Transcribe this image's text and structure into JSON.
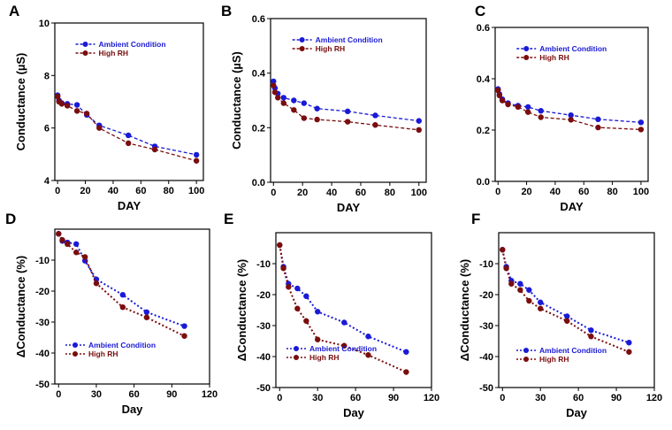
{
  "figure": {
    "domain": "multi-panel conductance figure"
  },
  "colors": {
    "ambient": "#1a1ad6",
    "high_rh": "#7a0d0d",
    "axis": "#000000"
  },
  "chart_data": [
    {
      "id": "A",
      "label": "A",
      "type": "line",
      "xlabel": "DAY",
      "ylabel": "Conductance (µS)",
      "xlim": [
        -2,
        105
      ],
      "ylim": [
        4,
        10
      ],
      "xticks": [
        0,
        20,
        40,
        60,
        80,
        100
      ],
      "yticks": [
        4,
        6,
        8,
        10
      ],
      "ytick_labels": [
        "4",
        "6",
        "8",
        "10"
      ],
      "legend": "top-right",
      "series": [
        {
          "name": "Ambient Condition",
          "style": "dashed",
          "x": [
            0,
            1,
            3,
            7,
            14,
            21,
            30,
            51,
            70,
            100
          ],
          "y": [
            7.25,
            7.05,
            6.95,
            6.92,
            6.88,
            6.5,
            6.1,
            5.72,
            5.3,
            4.98
          ]
        },
        {
          "name": "High RH",
          "style": "dashed",
          "x": [
            0,
            1,
            3,
            7,
            14,
            21,
            30,
            51,
            70,
            100
          ],
          "y": [
            7.2,
            7.0,
            6.92,
            6.85,
            6.65,
            6.55,
            6.0,
            5.42,
            5.18,
            4.75
          ]
        }
      ]
    },
    {
      "id": "B",
      "label": "B",
      "type": "line",
      "xlabel": "DAY",
      "ylabel": "Conductance (µS)",
      "xlim": [
        -2,
        105
      ],
      "ylim": [
        0,
        0.6
      ],
      "xticks": [
        0,
        20,
        40,
        60,
        80,
        100
      ],
      "yticks": [
        0,
        0.2,
        0.4,
        0.6
      ],
      "ytick_labels": [
        "0.0",
        "0.2",
        "0.4",
        "0.6"
      ],
      "legend": "top-right",
      "series": [
        {
          "name": "Ambient Condition",
          "style": "dashed",
          "x": [
            0,
            1,
            3,
            7,
            14,
            21,
            30,
            51,
            70,
            100
          ],
          "y": [
            0.37,
            0.345,
            0.325,
            0.31,
            0.3,
            0.29,
            0.27,
            0.26,
            0.245,
            0.225
          ]
        },
        {
          "name": "High RH",
          "style": "dashed",
          "x": [
            0,
            1,
            3,
            7,
            14,
            21,
            30,
            51,
            70,
            100
          ],
          "y": [
            0.355,
            0.33,
            0.31,
            0.29,
            0.265,
            0.235,
            0.23,
            0.222,
            0.21,
            0.192
          ]
        }
      ]
    },
    {
      "id": "C",
      "label": "C",
      "type": "line",
      "xlabel": "DAY",
      "ylabel": "",
      "xlim": [
        -2,
        105
      ],
      "ylim": [
        0,
        0.6
      ],
      "xticks": [
        0,
        20,
        40,
        60,
        80,
        100
      ],
      "yticks": [
        0,
        0.2,
        0.4,
        0.6
      ],
      "ytick_labels": [
        "0.0",
        "0.2",
        "0.4",
        "0.6"
      ],
      "legend": "top-right",
      "series": [
        {
          "name": "Ambient Condition",
          "style": "dashed",
          "x": [
            0,
            1,
            3,
            7,
            14,
            21,
            30,
            51,
            70,
            100
          ],
          "y": [
            0.36,
            0.34,
            0.32,
            0.305,
            0.295,
            0.29,
            0.275,
            0.258,
            0.242,
            0.23
          ]
        },
        {
          "name": "High RH",
          "style": "dashed",
          "x": [
            0,
            1,
            3,
            7,
            14,
            21,
            30,
            51,
            70,
            100
          ],
          "y": [
            0.355,
            0.335,
            0.315,
            0.3,
            0.29,
            0.27,
            0.25,
            0.24,
            0.21,
            0.202
          ]
        }
      ]
    },
    {
      "id": "D",
      "label": "D",
      "type": "line",
      "xlabel": "Day",
      "ylabel": "ΔConductance (%)",
      "xlim": [
        -3,
        120
      ],
      "ylim": [
        -50,
        0
      ],
      "xticks": [
        0,
        30,
        60,
        90,
        120
      ],
      "yticks": [
        -10,
        -20,
        -30,
        -40,
        -50
      ],
      "ytick_labels": [
        "-10",
        "-20",
        "-30",
        "-40",
        "-50"
      ],
      "legend": "bottom-left",
      "series": [
        {
          "name": "Ambient Condition",
          "style": "dotted",
          "x": [
            0,
            3,
            7,
            14,
            21,
            30,
            51,
            70,
            100
          ],
          "y": [
            -1.5,
            -3.8,
            -4.3,
            -4.8,
            -10.2,
            -16.2,
            -21.2,
            -26.8,
            -31.3
          ]
        },
        {
          "name": "High RH",
          "style": "dotted",
          "x": [
            0,
            3,
            7,
            14,
            21,
            30,
            51,
            70,
            100
          ],
          "y": [
            -1.5,
            -3.5,
            -4.8,
            -7.5,
            -9.0,
            -17.5,
            -25.2,
            -28.5,
            -34.5
          ]
        }
      ]
    },
    {
      "id": "E",
      "label": "E",
      "type": "line",
      "xlabel": "Day",
      "ylabel": "ΔConductance (%)",
      "xlim": [
        -3,
        120
      ],
      "ylim": [
        -50,
        0
      ],
      "xticks": [
        0,
        30,
        60,
        90,
        120
      ],
      "yticks": [
        -10,
        -20,
        -30,
        -40,
        -50
      ],
      "ytick_labels": [
        "-10",
        "-20",
        "-30",
        "-40",
        "-50"
      ],
      "legend": "bottom-left",
      "series": [
        {
          "name": "Ambient Condition",
          "style": "dotted",
          "x": [
            0,
            3,
            7,
            14,
            21,
            30,
            51,
            70,
            100
          ],
          "y": [
            -4.0,
            -11.0,
            -16.5,
            -18.0,
            -20.5,
            -25.5,
            -29.0,
            -33.5,
            -38.5
          ]
        },
        {
          "name": "High RH",
          "style": "dotted",
          "x": [
            0,
            3,
            7,
            14,
            21,
            30,
            51,
            70,
            100
          ],
          "y": [
            -4.0,
            -11.5,
            -17.5,
            -24.5,
            -28.5,
            -34.5,
            -36.5,
            -39.5,
            -45.0
          ]
        }
      ]
    },
    {
      "id": "F",
      "label": "F",
      "type": "line",
      "xlabel": "Day",
      "ylabel": "ΔConductance (%)",
      "xlim": [
        -3,
        120
      ],
      "ylim": [
        -50,
        0
      ],
      "xticks": [
        0,
        30,
        60,
        90,
        120
      ],
      "yticks": [
        -10,
        -20,
        -30,
        -40,
        -50
      ],
      "ytick_labels": [
        "-10",
        "-20",
        "-30",
        "-40",
        "-50"
      ],
      "legend": "bottom-right",
      "series": [
        {
          "name": "Ambient Condition",
          "style": "dotted",
          "x": [
            0,
            3,
            7,
            14,
            21,
            30,
            51,
            70,
            100
          ],
          "y": [
            -5.5,
            -11.0,
            -15.5,
            -16.5,
            -18.5,
            -22.5,
            -27.0,
            -31.5,
            -35.5
          ]
        },
        {
          "name": "High RH",
          "style": "dotted",
          "x": [
            0,
            3,
            7,
            14,
            21,
            30,
            51,
            70,
            100
          ],
          "y": [
            -5.5,
            -11.5,
            -16.5,
            -18.5,
            -22.0,
            -24.5,
            -28.5,
            -33.5,
            -38.5
          ]
        }
      ]
    }
  ]
}
